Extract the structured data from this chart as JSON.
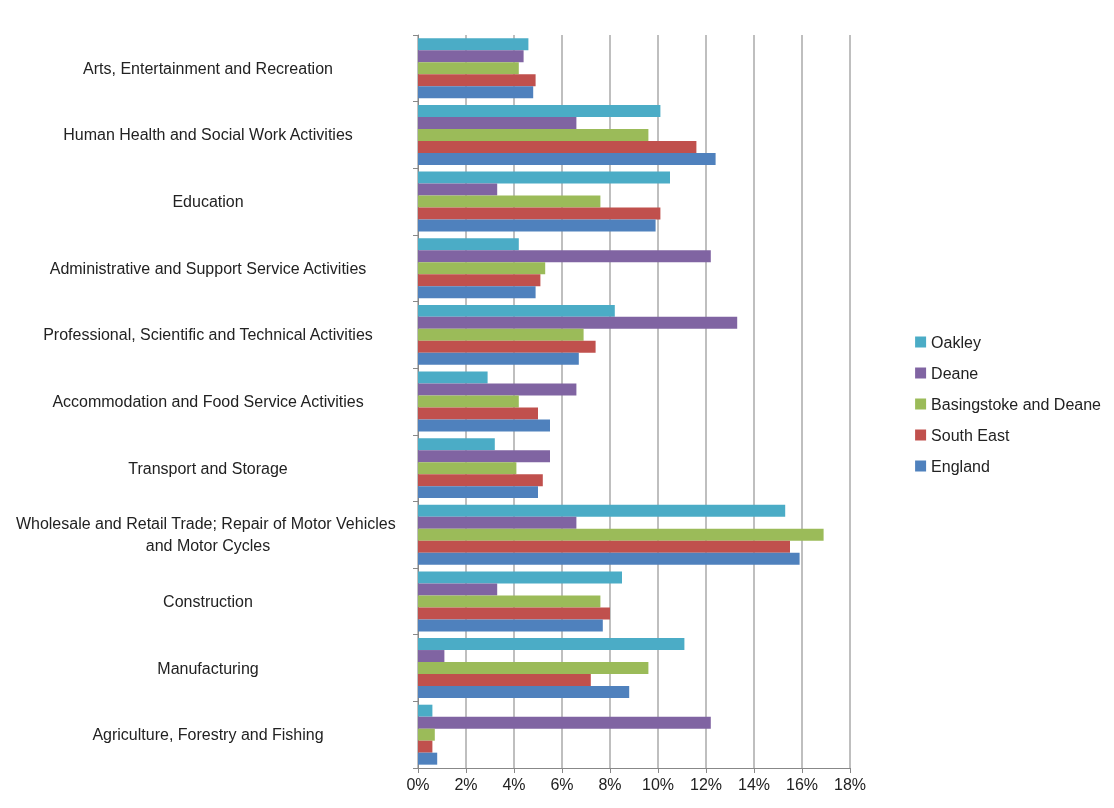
{
  "chart_data": {
    "type": "bar",
    "orientation": "horizontal",
    "categories": [
      "Arts, Entertainment and Recreation",
      "Human Health and Social Work Activities",
      "Education",
      "Administrative and Support Service Activities",
      "Professional, Scientific and Technical Activities",
      "Accommodation and Food Service Activities",
      "Transport and Storage",
      "Wholesale and Retail Trade; Repair of Motor Vehicles and Motor Cycles",
      "Construction",
      "Manufacturing",
      "Agriculture, Forestry and Fishing"
    ],
    "series": [
      {
        "name": "Oakley",
        "color": "#4bacc6",
        "values": [
          4.6,
          10.1,
          10.5,
          4.2,
          8.2,
          2.9,
          3.2,
          15.3,
          8.5,
          11.1,
          0.6
        ]
      },
      {
        "name": "Deane",
        "color": "#8064a2",
        "values": [
          4.4,
          6.6,
          3.3,
          12.2,
          13.3,
          6.6,
          5.5,
          6.6,
          3.3,
          1.1,
          12.2
        ]
      },
      {
        "name": "Basingstoke and Deane",
        "color": "#9bbb59",
        "values": [
          4.2,
          9.6,
          7.6,
          5.3,
          6.9,
          4.2,
          4.1,
          16.9,
          7.6,
          9.6,
          0.7
        ]
      },
      {
        "name": "South East",
        "color": "#c0504d",
        "values": [
          4.9,
          11.6,
          10.1,
          5.1,
          7.4,
          5.0,
          5.2,
          15.5,
          8.0,
          7.2,
          0.6
        ]
      },
      {
        "name": "England",
        "color": "#4f81bd",
        "values": [
          4.8,
          12.4,
          9.9,
          4.9,
          6.7,
          5.5,
          5.0,
          15.9,
          7.7,
          8.8,
          0.8
        ]
      }
    ],
    "xlim": [
      0,
      18
    ],
    "xticks": [
      {
        "value": 0,
        "label": "0%"
      },
      {
        "value": 2,
        "label": "2%"
      },
      {
        "value": 4,
        "label": "4%"
      },
      {
        "value": 6,
        "label": "6%"
      },
      {
        "value": 8,
        "label": "8%"
      },
      {
        "value": 10,
        "label": "10%"
      },
      {
        "value": 12,
        "label": "12%"
      },
      {
        "value": 14,
        "label": "14%"
      },
      {
        "value": 16,
        "label": "16%"
      },
      {
        "value": 18,
        "label": "18%"
      }
    ],
    "grid": "x",
    "legend": "right"
  }
}
